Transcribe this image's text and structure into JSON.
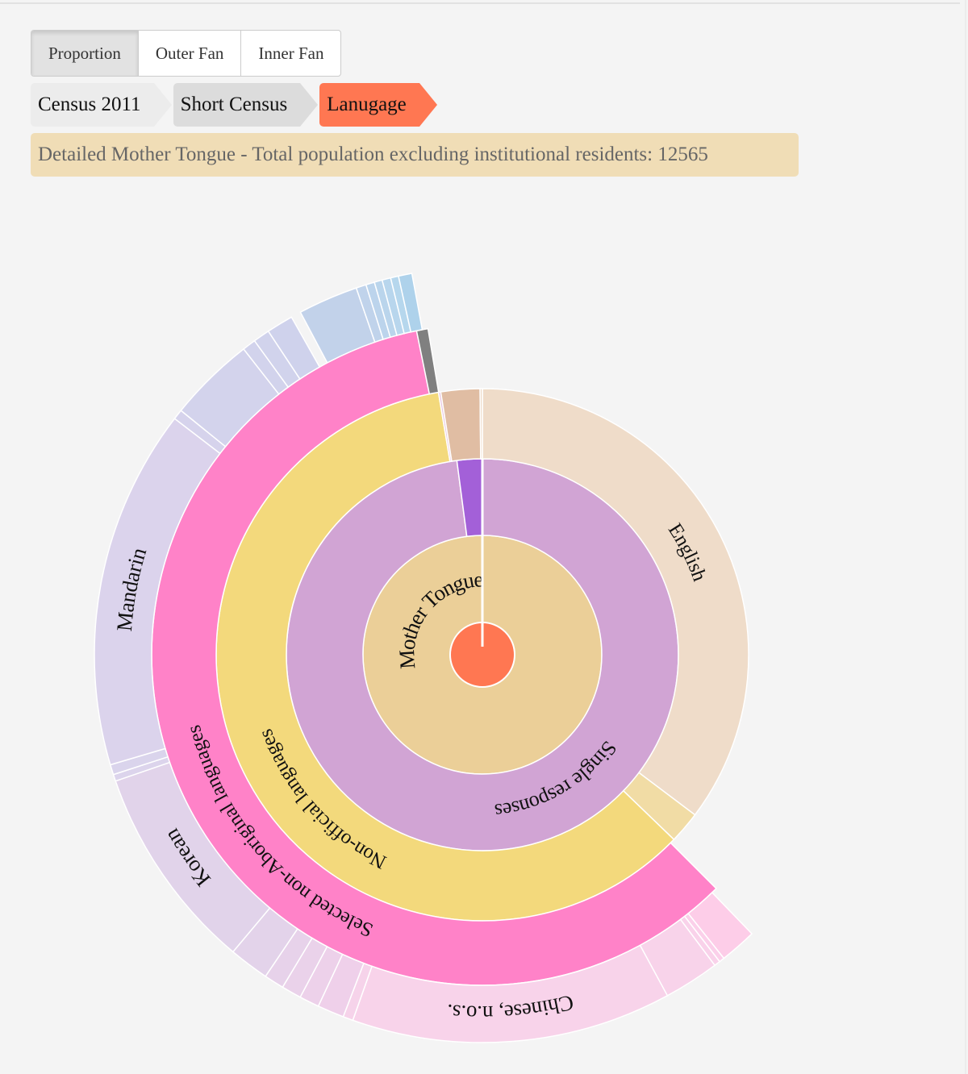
{
  "toolbar": {
    "buttons": [
      {
        "label": "Proportion",
        "active": true
      },
      {
        "label": "Outer Fan",
        "active": false
      },
      {
        "label": "Inner Fan",
        "active": false
      }
    ]
  },
  "breadcrumb": [
    {
      "label": "Census 2011"
    },
    {
      "label": "Short Census"
    },
    {
      "label": "Lanugage"
    }
  ],
  "info": {
    "text": "Detailed Mother Tongue - Total population excluding institutional residents: 12565"
  },
  "colors": {
    "center": "#ff7752",
    "accent": "#ff7752",
    "info_bg": "#f0ddb6"
  },
  "chart_data": {
    "type": "sunburst",
    "title": "Detailed Mother Tongue",
    "total": 12565,
    "unit": "share_pct of total",
    "center": {
      "color": "#ff7752"
    },
    "rings": [
      [
        {
          "label": "Mother Tongue",
          "share_pct": 100,
          "color": "#ebcf98"
        }
      ],
      [
        {
          "label": "Single responses",
          "share_pct": 97.92,
          "color": "#d1a4d4"
        },
        {
          "label": "",
          "share_pct": 2.08,
          "color": "#a360d8"
        }
      ],
      [
        {
          "label": "English",
          "share_pct": 35.28,
          "color": "#efdcc9"
        },
        {
          "label": "",
          "share_pct": 1.94,
          "color": "#f1dca5"
        },
        {
          "label": "Non-official languages",
          "share_pct": 60.14,
          "color": "#f3d97c"
        },
        {
          "label": "",
          "share_pct": 0.14,
          "color": "#e8c6e0"
        },
        {
          "label": "",
          "share_pct": 2.36,
          "color": "#e0bda3"
        },
        {
          "label": "",
          "share_pct": 0.14,
          "color": "#efdcc9"
        }
      ],
      [
        {
          "label": "",
          "share_pct": 37.5,
          "color": null
        },
        {
          "label": "Selected non-Aboriginal languages",
          "share_pct": 59.31,
          "color": "#ff82c8"
        },
        {
          "label": "",
          "share_pct": 0.56,
          "color": "#808080"
        }
      ],
      [
        {
          "label": "",
          "share_pct": 37.78,
          "color": null
        },
        {
          "label": "",
          "share_pct": 1.53,
          "color": "#fdcde8"
        },
        {
          "label": "",
          "share_pct": 0.22,
          "color": "#fbd0ea"
        },
        {
          "label": "",
          "share_pct": 0.25,
          "color": "#f9d2ea"
        },
        {
          "label": "",
          "share_pct": 2.31,
          "color": "#f8d3ea"
        },
        {
          "label": "Chinese, n.o.s.",
          "share_pct": 13.33,
          "color": "#f8d3ea"
        },
        {
          "label": "",
          "share_pct": 0.42,
          "color": "#f6d3ea"
        },
        {
          "label": "",
          "share_pct": 1.11,
          "color": "#efd0ea"
        },
        {
          "label": "",
          "share_pct": 0.83,
          "color": "#edd1ea"
        },
        {
          "label": "",
          "share_pct": 0.83,
          "color": "#ead2ea"
        },
        {
          "label": "",
          "share_pct": 0.83,
          "color": "#e7d2ea"
        },
        {
          "label": "",
          "share_pct": 1.67,
          "color": "#e3d3ea"
        },
        {
          "label": "Korean",
          "share_pct": 8.61,
          "color": "#e1d3ea"
        },
        {
          "label": "",
          "share_pct": 0.28,
          "color": "#dcd4ec"
        },
        {
          "label": "",
          "share_pct": 0.42,
          "color": "#dad4ec"
        },
        {
          "label": "Mandarin",
          "share_pct": 15.0,
          "color": "#dbd3ec"
        },
        {
          "label": "",
          "share_pct": 0.42,
          "color": "#d6d3ec"
        },
        {
          "label": "",
          "share_pct": 3.61,
          "color": "#d3d3ec"
        },
        {
          "label": "",
          "share_pct": 0.56,
          "color": "#d2d3ec"
        },
        {
          "label": "",
          "share_pct": 0.69,
          "color": "#d1d3ec"
        },
        {
          "label": "",
          "share_pct": 1.11,
          "color": "#cfd2ec"
        },
        {
          "label": "",
          "share_pct": 0.42,
          "color": null
        },
        {
          "label": "",
          "share_pct": 2.5,
          "color": "#c2d2ea"
        },
        {
          "label": "",
          "share_pct": 0.42,
          "color": "#c0d3eb"
        },
        {
          "label": "",
          "share_pct": 0.36,
          "color": "#bcd4ec"
        },
        {
          "label": "",
          "share_pct": 0.33,
          "color": "#bad5ec"
        },
        {
          "label": "",
          "share_pct": 0.36,
          "color": "#b8d6ed"
        },
        {
          "label": "",
          "share_pct": 0.33,
          "color": "#b6d7ed"
        },
        {
          "label": "",
          "share_pct": 0.56,
          "color": "#aed2eb"
        }
      ]
    ]
  }
}
